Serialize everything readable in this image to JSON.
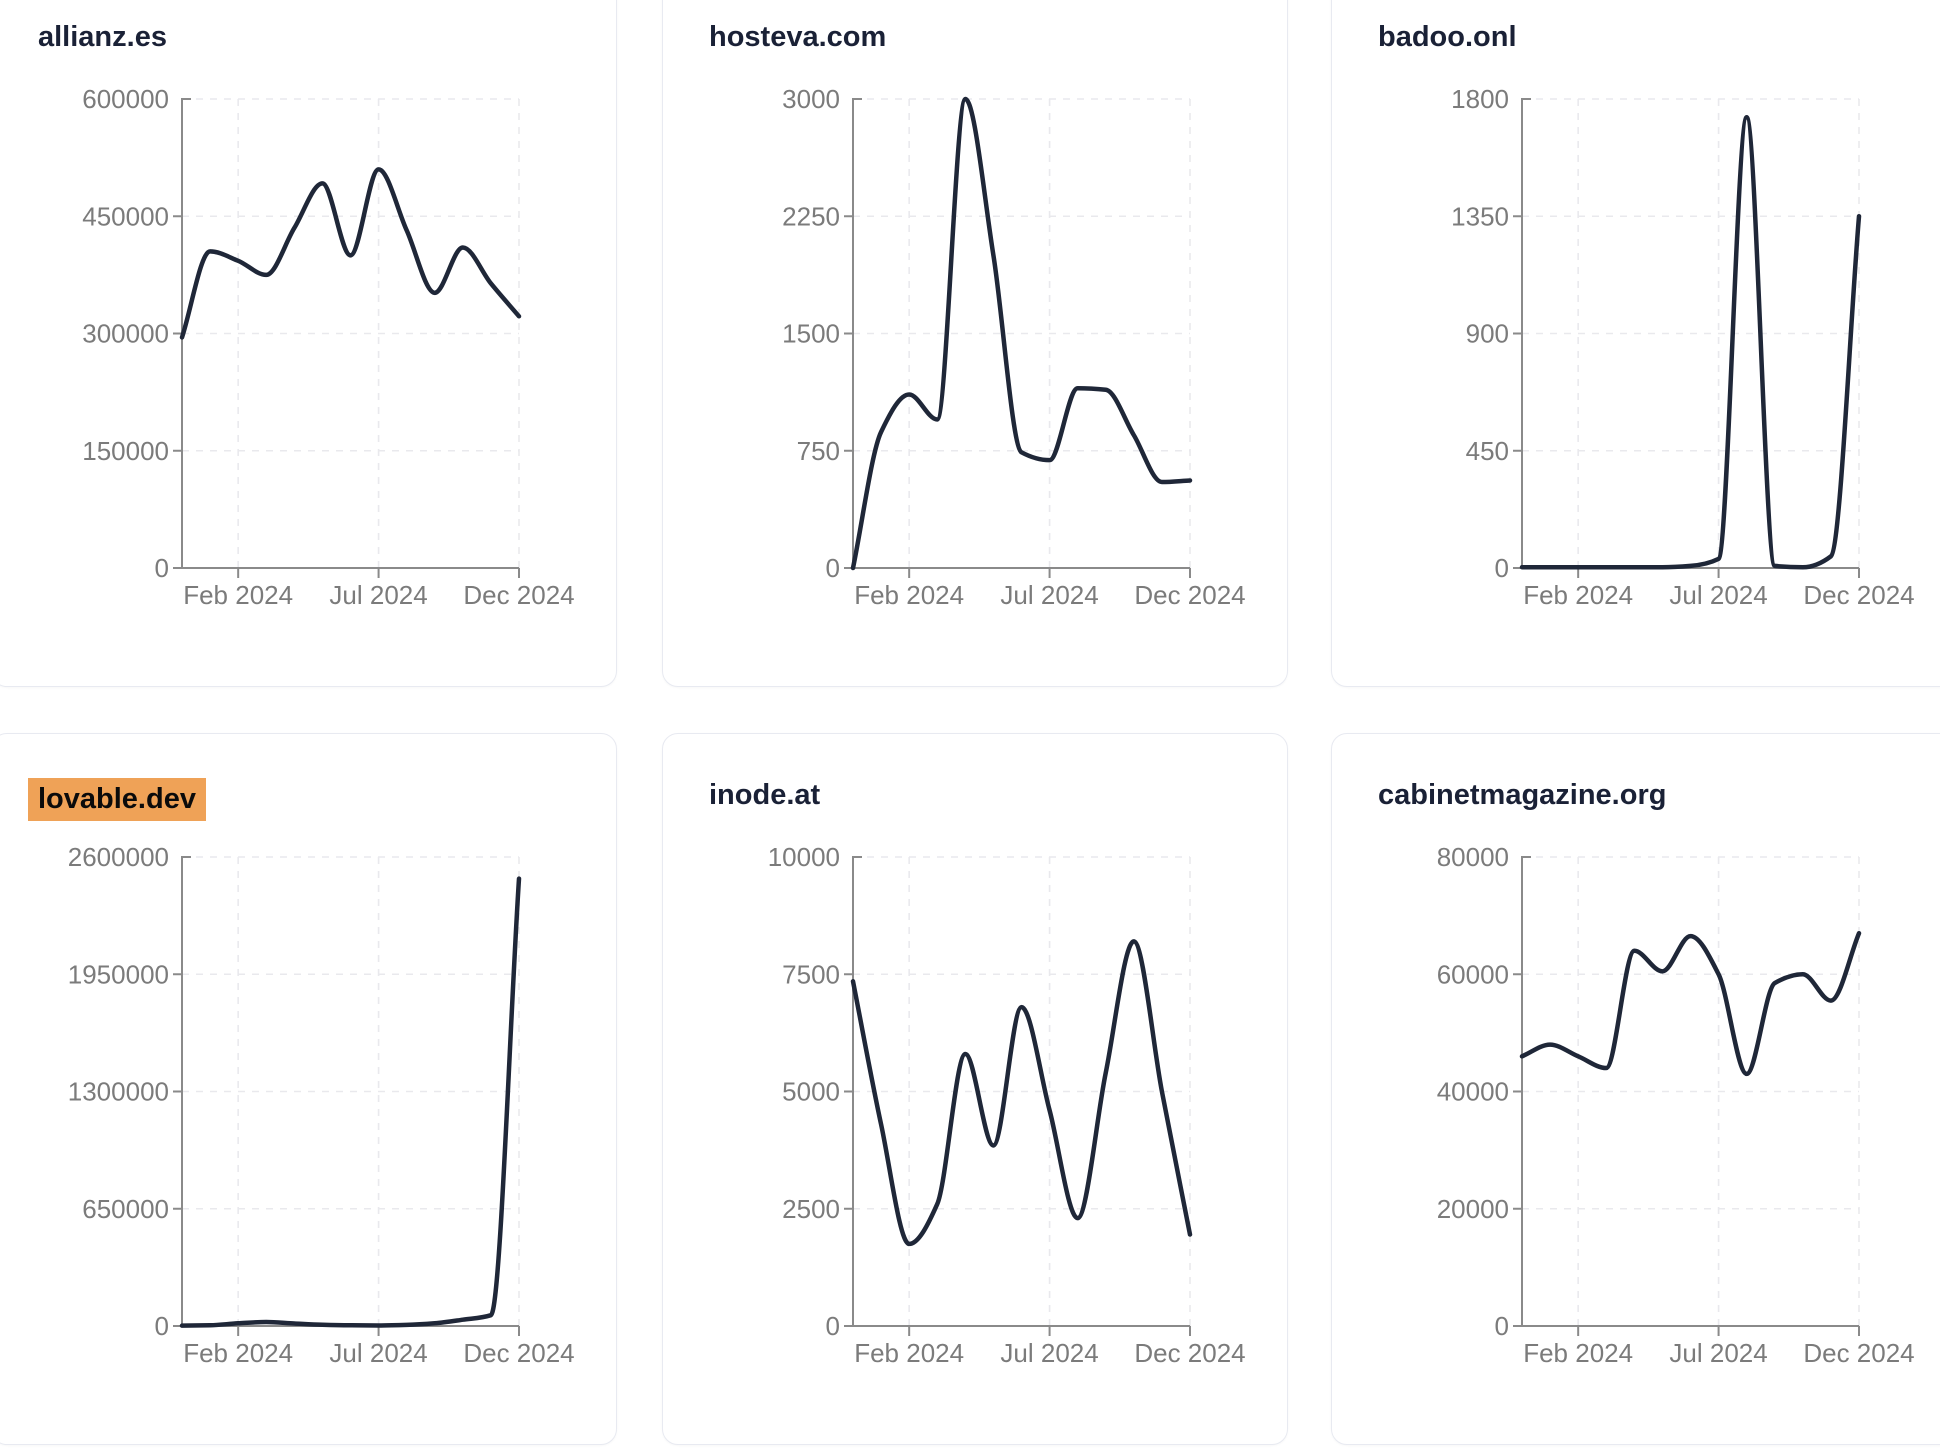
{
  "page": {
    "background": "#ffffff"
  },
  "theme": {
    "line_color": "#1f2738",
    "title_color": "#1a2136",
    "axis_color": "#8a8a8a",
    "tick_label_color": "#7b7b7b",
    "grid_color": "#e9e9ed",
    "card_border_color": "#e8eaf1",
    "card_background": "#ffffff",
    "highlight_background": "#efa257",
    "highlight_text_color": "#0b0b0b"
  },
  "chart_data": [
    {
      "type": "line",
      "title": "allianz.es",
      "highlighted": false,
      "x": [
        "Dec 2023",
        "Jan 2024",
        "Feb 2024",
        "Mar 2024",
        "Apr 2024",
        "May 2024",
        "Jun 2024",
        "Jul 2024",
        "Aug 2024",
        "Sep 2024",
        "Oct 2024",
        "Nov 2024",
        "Dec 2024"
      ],
      "values": [
        295000,
        405000,
        393000,
        375000,
        435000,
        492000,
        400000,
        510000,
        432000,
        352000,
        410000,
        364000,
        322000
      ],
      "ylim": [
        0,
        600000
      ],
      "y_ticks": [
        0,
        150000,
        300000,
        450000,
        600000
      ],
      "x_tick_labels": [
        "Feb 2024",
        "Jul 2024",
        "Dec 2024"
      ],
      "x_tick_indices": [
        2,
        7,
        12
      ],
      "grid": true,
      "legend": "none"
    },
    {
      "type": "line",
      "title": "hosteva.com",
      "highlighted": false,
      "x": [
        "Dec 2023",
        "Jan 2024",
        "Feb 2024",
        "Mar 2024",
        "Apr 2024",
        "May 2024",
        "Jun 2024",
        "Jul 2024",
        "Aug 2024",
        "Sep 2024",
        "Oct 2024",
        "Nov 2024",
        "Dec 2024"
      ],
      "values": [
        0,
        870,
        1110,
        950,
        3000,
        2000,
        740,
        690,
        1150,
        1140,
        850,
        550,
        560
      ],
      "ylim": [
        0,
        3000
      ],
      "y_ticks": [
        0,
        750,
        1500,
        2250,
        3000
      ],
      "x_tick_labels": [
        "Feb 2024",
        "Jul 2024",
        "Dec 2024"
      ],
      "x_tick_indices": [
        2,
        7,
        12
      ],
      "grid": true,
      "legend": "none"
    },
    {
      "type": "line",
      "title": "badoo.onl",
      "highlighted": false,
      "x": [
        "Dec 2023",
        "Jan 2024",
        "Feb 2024",
        "Mar 2024",
        "Apr 2024",
        "May 2024",
        "Jun 2024",
        "Jul 2024",
        "Aug 2024",
        "Sep 2024",
        "Oct 2024",
        "Nov 2024",
        "Dec 2024"
      ],
      "values": [
        3,
        3,
        3,
        3,
        3,
        3,
        8,
        35,
        1730,
        8,
        3,
        45,
        1350
      ],
      "ylim": [
        0,
        1800
      ],
      "y_ticks": [
        0,
        450,
        900,
        1350,
        1800
      ],
      "x_tick_labels": [
        "Feb 2024",
        "Jul 2024",
        "Dec 2024"
      ],
      "x_tick_indices": [
        2,
        7,
        12
      ],
      "grid": true,
      "legend": "none"
    },
    {
      "type": "line",
      "title": "lovable.dev",
      "highlighted": true,
      "x": [
        "Dec 2023",
        "Jan 2024",
        "Feb 2024",
        "Mar 2024",
        "Apr 2024",
        "May 2024",
        "Jun 2024",
        "Jul 2024",
        "Aug 2024",
        "Sep 2024",
        "Oct 2024",
        "Nov 2024",
        "Dec 2024"
      ],
      "values": [
        2000,
        4000,
        15000,
        22000,
        14000,
        7000,
        4000,
        3000,
        6000,
        15000,
        35000,
        60000,
        2480000
      ],
      "ylim": [
        0,
        2600000
      ],
      "y_ticks": [
        0,
        650000,
        1300000,
        1950000,
        2600000
      ],
      "x_tick_labels": [
        "Feb 2024",
        "Jul 2024",
        "Dec 2024"
      ],
      "x_tick_indices": [
        2,
        7,
        12
      ],
      "grid": true,
      "legend": "none"
    },
    {
      "type": "line",
      "title": "inode.at",
      "highlighted": false,
      "x": [
        "Dec 2023",
        "Jan 2024",
        "Feb 2024",
        "Mar 2024",
        "Apr 2024",
        "May 2024",
        "Jun 2024",
        "Jul 2024",
        "Aug 2024",
        "Sep 2024",
        "Oct 2024",
        "Nov 2024",
        "Dec 2024"
      ],
      "values": [
        7350,
        4300,
        1750,
        2600,
        5800,
        3850,
        6800,
        4600,
        2300,
        5400,
        8200,
        5000,
        1950
      ],
      "ylim": [
        0,
        10000
      ],
      "y_ticks": [
        0,
        2500,
        5000,
        7500,
        10000
      ],
      "x_tick_labels": [
        "Feb 2024",
        "Jul 2024",
        "Dec 2024"
      ],
      "x_tick_indices": [
        2,
        7,
        12
      ],
      "grid": true,
      "legend": "none"
    },
    {
      "type": "line",
      "title": "cabinetmagazine.org",
      "highlighted": false,
      "x": [
        "Dec 2023",
        "Jan 2024",
        "Feb 2024",
        "Mar 2024",
        "Apr 2024",
        "May 2024",
        "Jun 2024",
        "Jul 2024",
        "Aug 2024",
        "Sep 2024",
        "Oct 2024",
        "Nov 2024",
        "Dec 2024"
      ],
      "values": [
        46000,
        48000,
        46000,
        44000,
        64000,
        60500,
        66500,
        60000,
        43000,
        58500,
        60000,
        55500,
        67000
      ],
      "ylim": [
        0,
        80000
      ],
      "y_ticks": [
        0,
        20000,
        40000,
        60000,
        80000
      ],
      "x_tick_labels": [
        "Feb 2024",
        "Jul 2024",
        "Dec 2024"
      ],
      "x_tick_indices": [
        2,
        7,
        12
      ],
      "grid": true,
      "legend": "none"
    }
  ]
}
